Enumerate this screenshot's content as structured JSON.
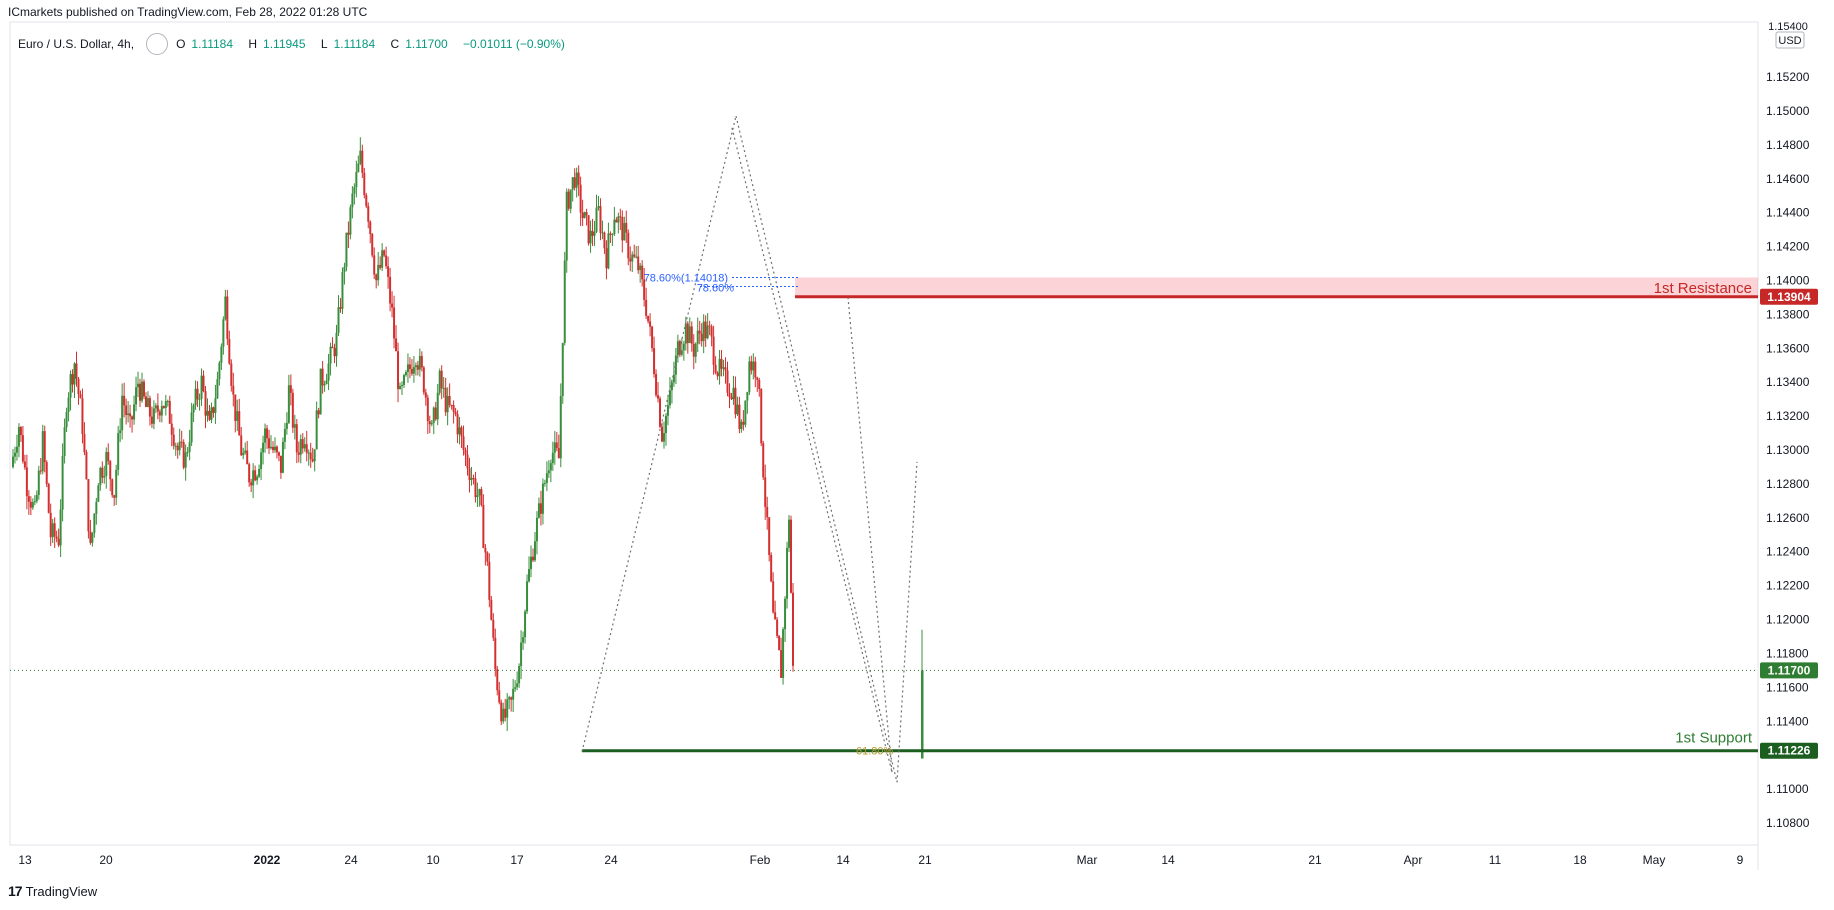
{
  "header": {
    "published": "ICmarkets published on TradingView.com, Feb 28, 2022 01:28 UTC"
  },
  "legend": {
    "symbol": "Euro / U.S. Dollar, 4h,",
    "open_label": "O",
    "open": "1.11184",
    "high_label": "H",
    "high": "1.11945",
    "low_label": "L",
    "low": "1.11184",
    "close_label": "C",
    "close": "1.11700",
    "change": "−0.01011 (−0.90%)"
  },
  "footer": {
    "brand": "TradingView",
    "logo": "17"
  },
  "chart_data": {
    "type": "candlestick",
    "currency": "USD",
    "y_ticks": [
      "1.15200",
      "1.15000",
      "1.14800",
      "1.14600",
      "1.14400",
      "1.14200",
      "1.14000",
      "1.13800",
      "1.13600",
      "1.13400",
      "1.13200",
      "1.13000",
      "1.12800",
      "1.12600",
      "1.12400",
      "1.12200",
      "1.12000",
      "1.11800",
      "1.11600",
      "1.11400",
      "1.11000",
      "1.10800"
    ],
    "top_tick": "1.15400",
    "ylim": [
      1.1065,
      1.1545
    ],
    "x_ticks": [
      "13",
      "20",
      "2022",
      "24",
      "10",
      "17",
      "24",
      "Feb",
      "14",
      "21",
      "Mar",
      "14",
      "21",
      "Apr",
      "11",
      "18",
      "May",
      "9"
    ],
    "price_path": [
      [
        0,
        1.129
      ],
      [
        8,
        1.1315
      ],
      [
        16,
        1.128
      ],
      [
        24,
        1.1262
      ],
      [
        32,
        1.1305
      ],
      [
        40,
        1.125
      ],
      [
        48,
        1.1248
      ],
      [
        56,
        1.133
      ],
      [
        64,
        1.1352
      ],
      [
        72,
        1.1315
      ],
      [
        80,
        1.124
      ],
      [
        88,
        1.1285
      ],
      [
        96,
        1.1295
      ],
      [
        104,
        1.1275
      ],
      [
        112,
        1.1332
      ],
      [
        120,
        1.1312
      ],
      [
        128,
        1.134
      ],
      [
        136,
        1.1325
      ],
      [
        144,
        1.1318
      ],
      [
        152,
        1.133
      ],
      [
        160,
        1.132
      ],
      [
        168,
        1.13
      ],
      [
        176,
        1.1295
      ],
      [
        184,
        1.1325
      ],
      [
        192,
        1.134
      ],
      [
        200,
        1.1312
      ],
      [
        208,
        1.134
      ],
      [
        216,
        1.1388
      ],
      [
        224,
        1.133
      ],
      [
        232,
        1.13
      ],
      [
        240,
        1.1285
      ],
      [
        248,
        1.129
      ],
      [
        256,
        1.131
      ],
      [
        264,
        1.13
      ],
      [
        272,
        1.129
      ],
      [
        280,
        1.1335
      ],
      [
        288,
        1.13
      ],
      [
        296,
        1.131
      ],
      [
        304,
        1.1295
      ],
      [
        312,
        1.134
      ],
      [
        320,
        1.135
      ],
      [
        328,
        1.1365
      ],
      [
        336,
        1.1412
      ],
      [
        344,
        1.1448
      ],
      [
        352,
        1.1472
      ],
      [
        360,
        1.144
      ],
      [
        368,
        1.14
      ],
      [
        376,
        1.1415
      ],
      [
        384,
        1.138
      ],
      [
        392,
        1.133
      ],
      [
        400,
        1.1345
      ],
      [
        408,
        1.1358
      ],
      [
        416,
        1.134
      ],
      [
        424,
        1.131
      ],
      [
        432,
        1.134
      ],
      [
        440,
        1.1325
      ],
      [
        448,
        1.132
      ],
      [
        456,
        1.13
      ],
      [
        464,
        1.1285
      ],
      [
        472,
        1.127
      ],
      [
        480,
        1.123
      ],
      [
        488,
        1.117
      ],
      [
        496,
        1.114
      ],
      [
        504,
        1.115
      ],
      [
        512,
        1.1175
      ],
      [
        520,
        1.122
      ],
      [
        528,
        1.125
      ],
      [
        536,
        1.1275
      ],
      [
        544,
        1.13
      ],
      [
        552,
        1.1295
      ],
      [
        560,
        1.1445
      ],
      [
        568,
        1.1462
      ],
      [
        576,
        1.1438
      ],
      [
        584,
        1.1425
      ],
      [
        592,
        1.144
      ],
      [
        600,
        1.1415
      ],
      [
        608,
        1.144
      ],
      [
        616,
        1.143
      ],
      [
        624,
        1.1415
      ],
      [
        632,
        1.1408
      ],
      [
        640,
        1.1385
      ],
      [
        648,
        1.135
      ],
      [
        656,
        1.131
      ],
      [
        664,
        1.133
      ],
      [
        672,
        1.136
      ],
      [
        680,
        1.1372
      ],
      [
        688,
        1.136
      ],
      [
        696,
        1.1372
      ],
      [
        704,
        1.1368
      ],
      [
        712,
        1.1348
      ],
      [
        720,
        1.134
      ],
      [
        728,
        1.1335
      ],
      [
        736,
        1.131
      ],
      [
        744,
        1.1352
      ],
      [
        752,
        1.1348
      ],
      [
        760,
        1.127
      ],
      [
        768,
        1.12
      ],
      [
        776,
        1.117
      ],
      [
        784,
        1.1262
      ],
      [
        788,
        1.117
      ]
    ],
    "annotations": [
      {
        "type": "zone",
        "label": "1st Resistance",
        "from": 1.13904,
        "to": 1.14018,
        "color": "#f23645"
      },
      {
        "type": "hline",
        "label": "1st Support",
        "value": 1.11226,
        "color": "#1b5e20"
      },
      {
        "type": "fib",
        "label": "78.60%(1.14018)",
        "value": 1.14018
      },
      {
        "type": "fib",
        "label": "78.60%",
        "value": 1.13965
      },
      {
        "type": "fib",
        "label": "61.80%",
        "value": 1.11226
      }
    ],
    "price_labels": [
      {
        "value": "1.13904",
        "color": "#c62828"
      },
      {
        "value": "1.11700",
        "color": "#2e7d32"
      },
      {
        "value": "1.11226",
        "color": "#1b5e20"
      }
    ],
    "colors": {
      "up": "#26a69a",
      "upbody": "#388e3c",
      "down": "#d32f2f"
    }
  }
}
